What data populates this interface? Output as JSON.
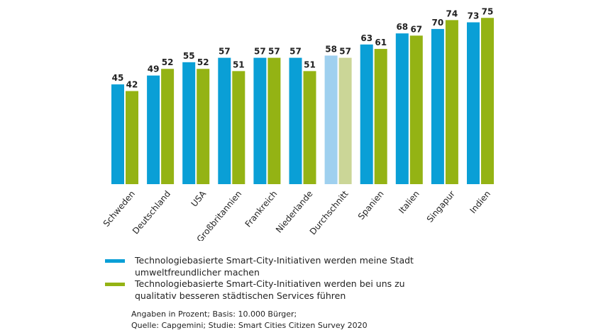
{
  "chart_data": {
    "type": "bar",
    "title": "",
    "xlabel": "",
    "ylabel": "",
    "ylim": [
      0,
      80
    ],
    "grid": false,
    "categories": [
      "Schweden",
      "Deutschland",
      "USA",
      "Großbritannien",
      "Frankreich",
      "Niederlande",
      "Durchschnitt",
      "Spanien",
      "Italien",
      "Singapur",
      "Indien"
    ],
    "highlight_category": "Durchschnitt",
    "series": [
      {
        "name": "Technologiebasierte Smart-City-Initiativen werden meine Stadt umweltfreundlicher machen",
        "color": "#0a9fd6",
        "highlight_color": "#9fd0ef",
        "values": [
          45,
          49,
          55,
          57,
          57,
          57,
          58,
          63,
          68,
          70,
          73
        ]
      },
      {
        "name": "Technologiebasierte Smart-City-Initiativen werden bei uns zu qualitativ besseren städtischen Services führen",
        "color": "#94b314",
        "highlight_color": "#cbd697",
        "values": [
          42,
          52,
          52,
          51,
          57,
          51,
          57,
          61,
          67,
          74,
          75
        ]
      }
    ],
    "legend_position": "bottom-left"
  },
  "legend": {
    "items": [
      {
        "line1": "Technologiebasierte Smart-City-Initiativen werden meine Stadt",
        "line2": "umweltfreundlicher machen"
      },
      {
        "line1": "Technologiebasierte Smart-City-Initiativen werden bei uns zu",
        "line2": "qualitativ besseren städtischen Services führen"
      }
    ]
  },
  "note": {
    "line1": "Angaben in Prozent; Basis: 10.000 Bürger;",
    "line2": "Quelle: Capgemini; Studie: Smart Cities Citizen Survey 2020"
  }
}
